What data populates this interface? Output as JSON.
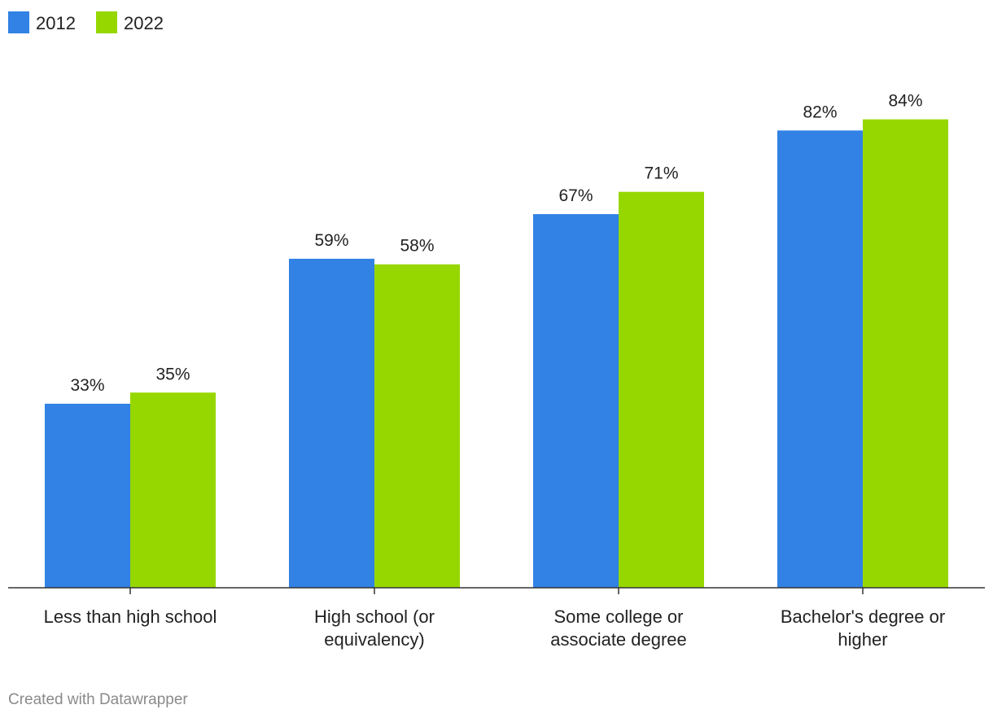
{
  "chart_data": {
    "type": "bar",
    "title": "",
    "xlabel": "",
    "ylabel": "",
    "ylim": [
      0,
      100
    ],
    "grid": false,
    "legend_position": "top-left",
    "categories": [
      [
        "Less than high school"
      ],
      [
        "High school (or",
        "equivalency)"
      ],
      [
        "Some college or",
        "associate degree"
      ],
      [
        "Bachelor's degree or",
        "higher"
      ]
    ],
    "series": [
      {
        "name": "2012",
        "color": "#3182e4",
        "values": [
          33,
          59,
          67,
          82
        ],
        "labels": [
          "33%",
          "59%",
          "67%",
          "82%"
        ]
      },
      {
        "name": "2022",
        "color": "#97d700",
        "values": [
          35,
          58,
          71,
          84
        ],
        "labels": [
          "35%",
          "58%",
          "71%",
          "84%"
        ]
      }
    ]
  },
  "footer": {
    "credit": "Created with Datawrapper"
  }
}
